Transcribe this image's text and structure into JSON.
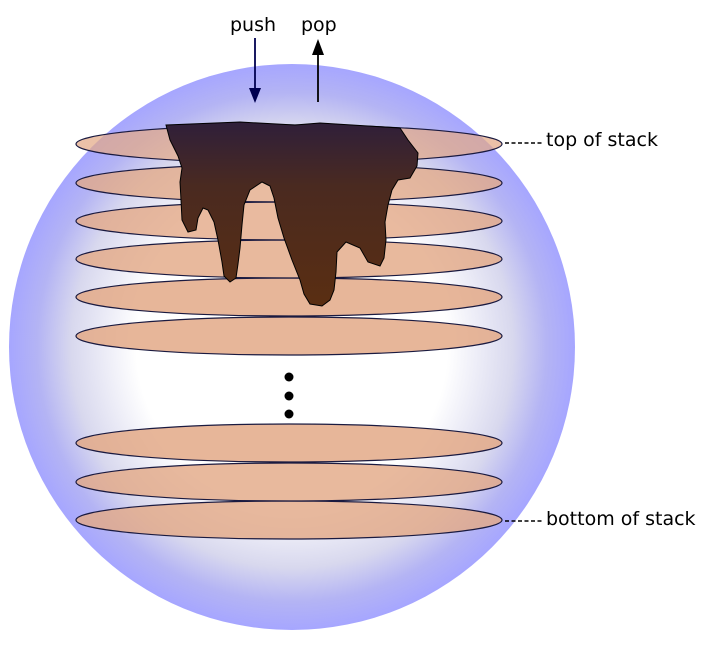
{
  "labels": {
    "push": "push",
    "pop": "pop",
    "top": "top of stack",
    "bottom": "bottom of stack"
  },
  "colors": {
    "sphere_edge": "#a8a8ff",
    "sphere_center": "#ffffff",
    "plate_fill": "#e3a987",
    "plate_stroke": "#1a1a40",
    "chocolate_top": "#2f1f3a",
    "chocolate_bottom": "#5a2e12",
    "push_arrow": "#000050",
    "pop_arrow": "#000000"
  }
}
